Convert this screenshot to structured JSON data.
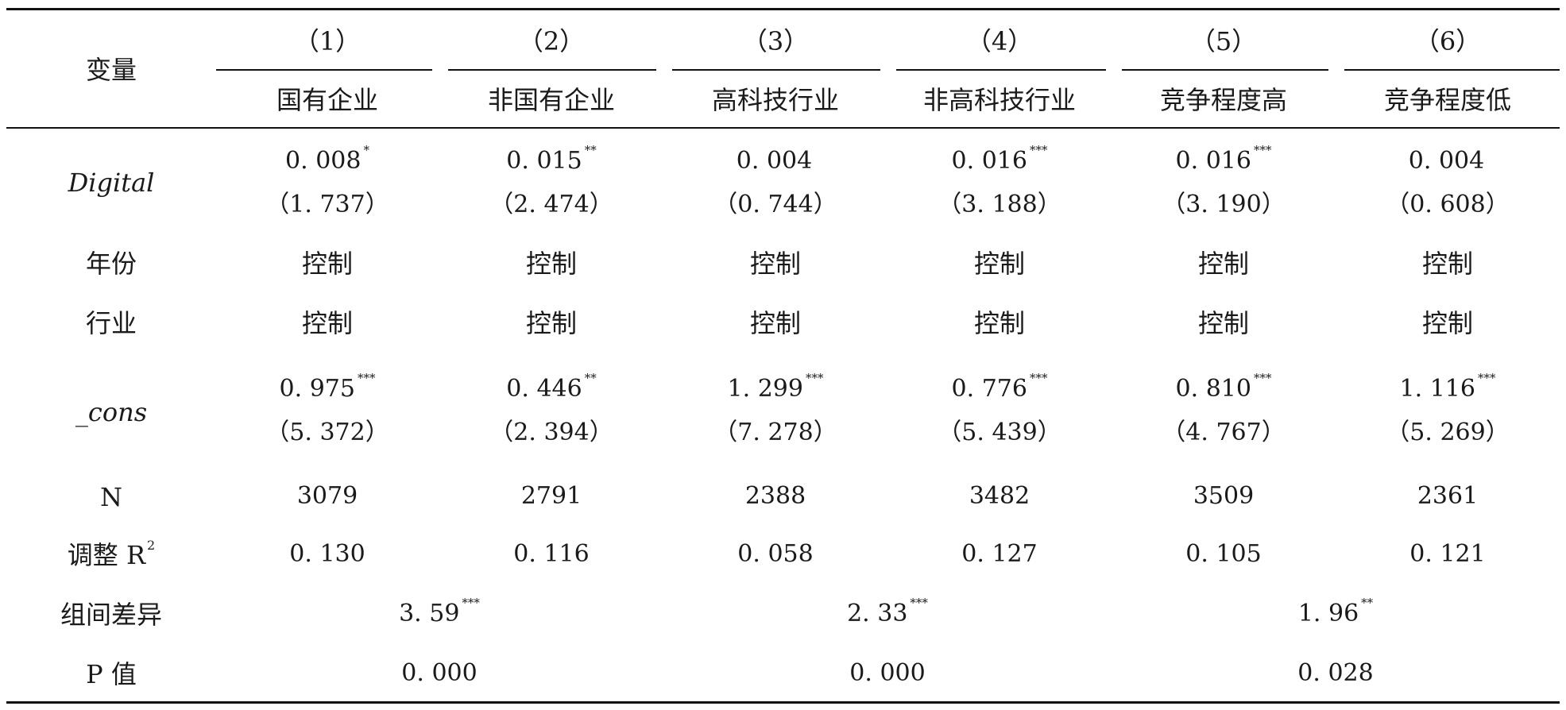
{
  "table": {
    "col_numbers": [
      "（1）",
      "（2）",
      "（3）",
      "（4）",
      "（5）",
      "（6）"
    ],
    "col_names": [
      "国有企业",
      "非国有企业",
      "高科技行业",
      "非高科技行业",
      "竞争程度高",
      "竞争程度低"
    ],
    "header_var": "变量",
    "rows": {
      "digital": {
        "label": "Digital",
        "coef": [
          "0. 008",
          "0. 015",
          "0. 004",
          "0. 016",
          "0. 016",
          "0. 004"
        ],
        "stars": [
          "*",
          "**",
          "",
          "***",
          "***",
          ""
        ],
        "t": [
          "（1. 737）",
          "（2. 474）",
          "（0. 744）",
          "（3. 188）",
          "（3. 190）",
          "（0. 608）"
        ]
      },
      "year": {
        "label": "年份",
        "values": [
          "控制",
          "控制",
          "控制",
          "控制",
          "控制",
          "控制"
        ]
      },
      "industry": {
        "label": "行业",
        "values": [
          "控制",
          "控制",
          "控制",
          "控制",
          "控制",
          "控制"
        ]
      },
      "cons": {
        "label": "_cons",
        "coef": [
          "0. 975",
          "0. 446",
          "1. 299",
          "0. 776",
          "0. 810",
          "1. 116"
        ],
        "stars": [
          "***",
          "**",
          "***",
          "***",
          "***",
          "***"
        ],
        "t": [
          "（5. 372）",
          "（2. 394）",
          "（7. 278）",
          "（5. 439）",
          "（4. 767）",
          "（5. 269）"
        ]
      },
      "n": {
        "label": "N",
        "values": [
          "3079",
          "2791",
          "2388",
          "3482",
          "3509",
          "2361"
        ]
      },
      "r2": {
        "label": "调整 R",
        "label_sup": "2",
        "values": [
          "0. 130",
          "0. 116",
          "0. 058",
          "0. 127",
          "0. 105",
          "0. 121"
        ]
      },
      "diff": {
        "label": "组间差异",
        "values": [
          "3. 59",
          "2. 33",
          "1. 96"
        ],
        "stars": [
          "***",
          "***",
          "**"
        ]
      },
      "p": {
        "label": "P 值",
        "values": [
          "0. 000",
          "0. 000",
          "0. 028"
        ]
      }
    }
  }
}
